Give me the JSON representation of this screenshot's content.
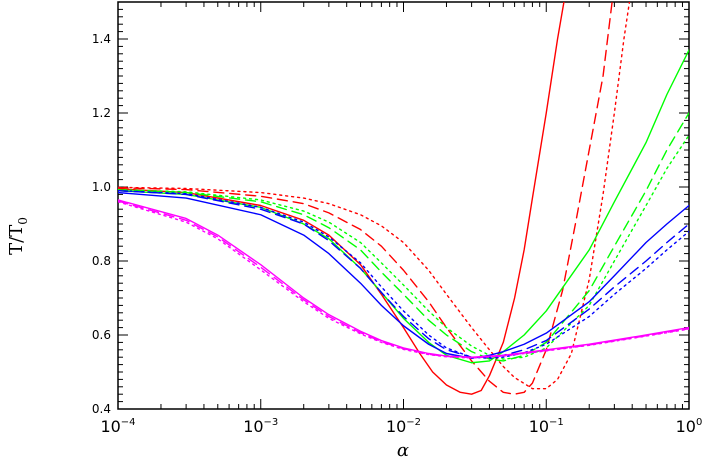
{
  "chart_data": {
    "type": "line",
    "title": "",
    "xlabel": "α",
    "ylabel": "T/T",
    "ylabel_subscript": "0",
    "xscale": "log",
    "xlim": [
      0.0001,
      1
    ],
    "ylim": [
      0.4,
      1.5
    ],
    "grid": false,
    "legend": "none",
    "x_ticks": [
      {
        "value": 0.0001,
        "base": "10",
        "exp": "−4"
      },
      {
        "value": 0.001,
        "base": "10",
        "exp": "−3"
      },
      {
        "value": 0.01,
        "base": "10",
        "exp": "−2"
      },
      {
        "value": 0.1,
        "base": "10",
        "exp": "−1"
      },
      {
        "value": 1,
        "base": "10",
        "exp": "0"
      }
    ],
    "y_ticks": [
      {
        "value": 0.4,
        "label": "0.4"
      },
      {
        "value": 0.6,
        "label": "0.6"
      },
      {
        "value": 0.8,
        "label": "0.8"
      },
      {
        "value": 1.0,
        "label": "1.0"
      },
      {
        "value": 1.2,
        "label": "1.2"
      },
      {
        "value": 1.4,
        "label": "1.4"
      }
    ],
    "series": [
      {
        "color": "#ff0000",
        "dash": "solid",
        "points": [
          [
            0.0001,
            0.995
          ],
          [
            0.0003,
            0.985
          ],
          [
            0.001,
            0.95
          ],
          [
            0.002,
            0.91
          ],
          [
            0.003,
            0.87
          ],
          [
            0.005,
            0.79
          ],
          [
            0.007,
            0.71
          ],
          [
            0.01,
            0.62
          ],
          [
            0.013,
            0.55
          ],
          [
            0.016,
            0.5
          ],
          [
            0.02,
            0.465
          ],
          [
            0.025,
            0.445
          ],
          [
            0.03,
            0.44
          ],
          [
            0.035,
            0.45
          ],
          [
            0.04,
            0.49
          ],
          [
            0.05,
            0.58
          ],
          [
            0.06,
            0.7
          ],
          [
            0.07,
            0.83
          ],
          [
            0.08,
            0.97
          ],
          [
            0.1,
            1.2
          ],
          [
            0.12,
            1.4
          ],
          [
            0.14,
            1.55
          ]
        ]
      },
      {
        "color": "#ff0000",
        "dash": "dashed",
        "points": [
          [
            0.0001,
            0.998
          ],
          [
            0.0003,
            0.993
          ],
          [
            0.001,
            0.975
          ],
          [
            0.002,
            0.955
          ],
          [
            0.003,
            0.93
          ],
          [
            0.005,
            0.885
          ],
          [
            0.007,
            0.84
          ],
          [
            0.01,
            0.775
          ],
          [
            0.015,
            0.69
          ],
          [
            0.02,
            0.62
          ],
          [
            0.03,
            0.53
          ],
          [
            0.04,
            0.475
          ],
          [
            0.05,
            0.445
          ],
          [
            0.06,
            0.44
          ],
          [
            0.07,
            0.445
          ],
          [
            0.08,
            0.47
          ],
          [
            0.1,
            0.56
          ],
          [
            0.13,
            0.72
          ],
          [
            0.16,
            0.9
          ],
          [
            0.2,
            1.1
          ],
          [
            0.25,
            1.3
          ],
          [
            0.3,
            1.55
          ]
        ]
      },
      {
        "color": "#ff0000",
        "dash": "dotted",
        "points": [
          [
            0.0001,
            0.999
          ],
          [
            0.0003,
            0.996
          ],
          [
            0.001,
            0.985
          ],
          [
            0.002,
            0.97
          ],
          [
            0.003,
            0.955
          ],
          [
            0.005,
            0.925
          ],
          [
            0.007,
            0.895
          ],
          [
            0.01,
            0.85
          ],
          [
            0.015,
            0.775
          ],
          [
            0.02,
            0.71
          ],
          [
            0.03,
            0.62
          ],
          [
            0.04,
            0.56
          ],
          [
            0.05,
            0.515
          ],
          [
            0.06,
            0.485
          ],
          [
            0.08,
            0.455
          ],
          [
            0.1,
            0.455
          ],
          [
            0.12,
            0.48
          ],
          [
            0.15,
            0.55
          ],
          [
            0.2,
            0.75
          ],
          [
            0.25,
            0.98
          ],
          [
            0.3,
            1.2
          ],
          [
            0.35,
            1.4
          ],
          [
            0.4,
            1.55
          ]
        ]
      },
      {
        "color": "#00ff00",
        "dash": "solid",
        "points": [
          [
            0.0001,
            0.99
          ],
          [
            0.0003,
            0.98
          ],
          [
            0.001,
            0.945
          ],
          [
            0.002,
            0.9
          ],
          [
            0.003,
            0.86
          ],
          [
            0.005,
            0.78
          ],
          [
            0.007,
            0.715
          ],
          [
            0.01,
            0.645
          ],
          [
            0.015,
            0.58
          ],
          [
            0.02,
            0.545
          ],
          [
            0.03,
            0.525
          ],
          [
            0.04,
            0.53
          ],
          [
            0.05,
            0.555
          ],
          [
            0.07,
            0.6
          ],
          [
            0.1,
            0.665
          ],
          [
            0.2,
            0.83
          ],
          [
            0.3,
            0.96
          ],
          [
            0.5,
            1.12
          ],
          [
            0.7,
            1.25
          ],
          [
            1,
            1.37
          ]
        ]
      },
      {
        "color": "#00ff00",
        "dash": "dashed",
        "points": [
          [
            0.0001,
            0.992
          ],
          [
            0.0003,
            0.985
          ],
          [
            0.001,
            0.96
          ],
          [
            0.002,
            0.925
          ],
          [
            0.003,
            0.89
          ],
          [
            0.005,
            0.83
          ],
          [
            0.007,
            0.77
          ],
          [
            0.01,
            0.71
          ],
          [
            0.015,
            0.64
          ],
          [
            0.02,
            0.6
          ],
          [
            0.03,
            0.555
          ],
          [
            0.04,
            0.535
          ],
          [
            0.05,
            0.53
          ],
          [
            0.07,
            0.545
          ],
          [
            0.1,
            0.58
          ],
          [
            0.2,
            0.72
          ],
          [
            0.3,
            0.84
          ],
          [
            0.5,
            0.99
          ],
          [
            0.7,
            1.1
          ],
          [
            1,
            1.2
          ]
        ]
      },
      {
        "color": "#00ff00",
        "dash": "dotted",
        "points": [
          [
            0.0001,
            0.993
          ],
          [
            0.0003,
            0.987
          ],
          [
            0.001,
            0.965
          ],
          [
            0.002,
            0.935
          ],
          [
            0.003,
            0.905
          ],
          [
            0.005,
            0.85
          ],
          [
            0.007,
            0.795
          ],
          [
            0.01,
            0.735
          ],
          [
            0.015,
            0.665
          ],
          [
            0.02,
            0.62
          ],
          [
            0.03,
            0.57
          ],
          [
            0.04,
            0.545
          ],
          [
            0.05,
            0.535
          ],
          [
            0.07,
            0.54
          ],
          [
            0.1,
            0.565
          ],
          [
            0.2,
            0.68
          ],
          [
            0.3,
            0.8
          ],
          [
            0.5,
            0.95
          ],
          [
            0.7,
            1.05
          ],
          [
            1,
            1.14
          ]
        ]
      },
      {
        "color": "#0000ff",
        "dash": "solid",
        "points": [
          [
            0.0001,
            0.985
          ],
          [
            0.0003,
            0.97
          ],
          [
            0.001,
            0.925
          ],
          [
            0.002,
            0.87
          ],
          [
            0.003,
            0.82
          ],
          [
            0.005,
            0.74
          ],
          [
            0.007,
            0.68
          ],
          [
            0.01,
            0.625
          ],
          [
            0.015,
            0.575
          ],
          [
            0.02,
            0.55
          ],
          [
            0.03,
            0.537
          ],
          [
            0.04,
            0.545
          ],
          [
            0.05,
            0.555
          ],
          [
            0.07,
            0.575
          ],
          [
            0.1,
            0.605
          ],
          [
            0.2,
            0.69
          ],
          [
            0.3,
            0.76
          ],
          [
            0.5,
            0.85
          ],
          [
            0.7,
            0.9
          ],
          [
            1,
            0.95
          ]
        ]
      },
      {
        "color": "#0000ff",
        "dash": "dashed",
        "points": [
          [
            0.0001,
            0.99
          ],
          [
            0.0003,
            0.98
          ],
          [
            0.001,
            0.94
          ],
          [
            0.002,
            0.9
          ],
          [
            0.003,
            0.855
          ],
          [
            0.005,
            0.78
          ],
          [
            0.007,
            0.715
          ],
          [
            0.01,
            0.65
          ],
          [
            0.015,
            0.59
          ],
          [
            0.02,
            0.56
          ],
          [
            0.03,
            0.54
          ],
          [
            0.04,
            0.54
          ],
          [
            0.05,
            0.545
          ],
          [
            0.07,
            0.56
          ],
          [
            0.1,
            0.585
          ],
          [
            0.2,
            0.67
          ],
          [
            0.3,
            0.73
          ],
          [
            0.5,
            0.8
          ],
          [
            0.7,
            0.85
          ],
          [
            1,
            0.9
          ]
        ]
      },
      {
        "color": "#0000ff",
        "dash": "dotted",
        "points": [
          [
            0.0001,
            0.99
          ],
          [
            0.0003,
            0.982
          ],
          [
            0.001,
            0.945
          ],
          [
            0.002,
            0.905
          ],
          [
            0.003,
            0.865
          ],
          [
            0.005,
            0.795
          ],
          [
            0.007,
            0.73
          ],
          [
            0.01,
            0.665
          ],
          [
            0.015,
            0.6
          ],
          [
            0.02,
            0.565
          ],
          [
            0.03,
            0.54
          ],
          [
            0.04,
            0.537
          ],
          [
            0.05,
            0.54
          ],
          [
            0.07,
            0.552
          ],
          [
            0.1,
            0.575
          ],
          [
            0.2,
            0.65
          ],
          [
            0.3,
            0.71
          ],
          [
            0.5,
            0.78
          ],
          [
            0.7,
            0.83
          ],
          [
            1,
            0.88
          ]
        ]
      },
      {
        "color": "#ff00ff",
        "dash": "solid",
        "points": [
          [
            0.0001,
            0.965
          ],
          [
            0.0003,
            0.915
          ],
          [
            0.0005,
            0.87
          ],
          [
            0.001,
            0.79
          ],
          [
            0.002,
            0.7
          ],
          [
            0.003,
            0.655
          ],
          [
            0.005,
            0.61
          ],
          [
            0.007,
            0.585
          ],
          [
            0.01,
            0.565
          ],
          [
            0.015,
            0.55
          ],
          [
            0.02,
            0.543
          ],
          [
            0.03,
            0.54
          ],
          [
            0.05,
            0.545
          ],
          [
            0.1,
            0.56
          ],
          [
            0.2,
            0.575
          ],
          [
            0.5,
            0.6
          ],
          [
            1,
            0.62
          ]
        ]
      },
      {
        "color": "#ff00ff",
        "dash": "dashed",
        "points": [
          [
            0.0001,
            0.962
          ],
          [
            0.0003,
            0.91
          ],
          [
            0.0005,
            0.865
          ],
          [
            0.001,
            0.783
          ],
          [
            0.002,
            0.695
          ],
          [
            0.003,
            0.65
          ],
          [
            0.005,
            0.606
          ],
          [
            0.007,
            0.582
          ],
          [
            0.01,
            0.563
          ],
          [
            0.015,
            0.548
          ],
          [
            0.02,
            0.542
          ],
          [
            0.03,
            0.539
          ],
          [
            0.05,
            0.544
          ],
          [
            0.1,
            0.558
          ],
          [
            0.2,
            0.573
          ],
          [
            0.5,
            0.598
          ],
          [
            1,
            0.617
          ]
        ]
      },
      {
        "color": "#ff00ff",
        "dash": "dotted",
        "points": [
          [
            0.0001,
            0.96
          ],
          [
            0.0003,
            0.905
          ],
          [
            0.0005,
            0.86
          ],
          [
            0.001,
            0.776
          ],
          [
            0.002,
            0.69
          ],
          [
            0.003,
            0.645
          ],
          [
            0.005,
            0.603
          ],
          [
            0.007,
            0.58
          ],
          [
            0.01,
            0.561
          ],
          [
            0.015,
            0.547
          ],
          [
            0.02,
            0.541
          ],
          [
            0.03,
            0.538
          ],
          [
            0.05,
            0.543
          ],
          [
            0.1,
            0.557
          ],
          [
            0.2,
            0.572
          ],
          [
            0.5,
            0.597
          ],
          [
            1,
            0.616
          ]
        ]
      }
    ]
  }
}
